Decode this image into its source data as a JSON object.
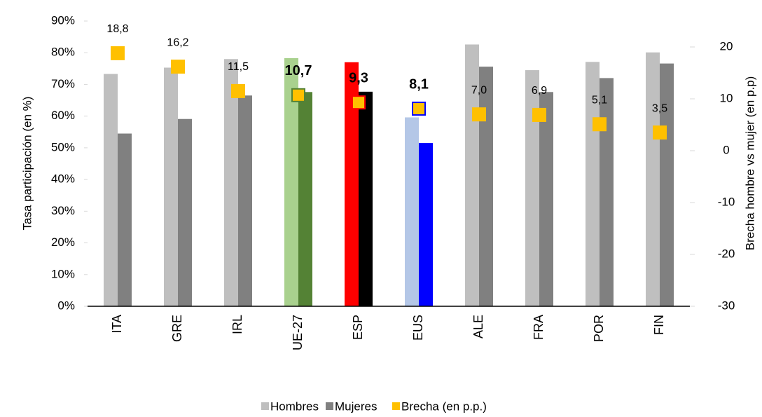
{
  "chart_data": {
    "type": "bar",
    "y_label": "Tasa participación (en %)",
    "y2_label": "Brecha hombre vs mujer (en p.p)",
    "y2_color": "#ed7d31",
    "categories": [
      "ITA",
      "GRE",
      "IRL",
      "UE-27",
      "ESP",
      "EUS",
      "ALE",
      "FRA",
      "POR",
      "FIN"
    ],
    "ylim": [
      0,
      90
    ],
    "yticks": [
      {
        "value": 0,
        "label": "0%"
      },
      {
        "value": 10,
        "label": "10%"
      },
      {
        "value": 20,
        "label": "20%"
      },
      {
        "value": 30,
        "label": "30%"
      },
      {
        "value": 40,
        "label": "40%"
      },
      {
        "value": 50,
        "label": "50%"
      },
      {
        "value": 60,
        "label": "60%"
      },
      {
        "value": 70,
        "label": "70%"
      },
      {
        "value": 80,
        "label": "80%"
      },
      {
        "value": 90,
        "label": "90%"
      }
    ],
    "y2lim": [
      -30,
      25
    ],
    "y2ticks": [
      -30,
      -20,
      -10,
      0,
      10,
      20
    ],
    "legend": "bottom",
    "series": [
      {
        "name": "Hombres",
        "color": "#bfbfbf",
        "type": "bar",
        "colors": [
          "#bfbfbf",
          "#bfbfbf",
          "#bfbfbf",
          "#a9d18e",
          "#ff0000",
          "#b4c7e7",
          "#bfbfbf",
          "#bfbfbf",
          "#bfbfbf",
          "#bfbfbf"
        ],
        "values": [
          73.3,
          75.3,
          78.0,
          78.3,
          77.0,
          59.6,
          82.6,
          74.5,
          77.1,
          80.1
        ]
      },
      {
        "name": "Mujeres",
        "color": "#808080",
        "type": "bar",
        "colors": [
          "#808080",
          "#808080",
          "#808080",
          "#548235",
          "#000000",
          "#0000ff",
          "#808080",
          "#808080",
          "#808080",
          "#808080"
        ],
        "values": [
          54.5,
          59.1,
          66.5,
          67.6,
          67.7,
          51.5,
          75.6,
          67.6,
          72.0,
          76.6
        ]
      },
      {
        "name": "Brecha (en p.p.)",
        "color": "#ffc000",
        "type": "scatter",
        "axis": "y2",
        "edge_colors": [
          "#ffc000",
          "#ffc000",
          "#ffc000",
          "#548235",
          "#ff0000",
          "#0000ff",
          "#ffc000",
          "#ffc000",
          "#ffc000",
          "#ffc000"
        ],
        "label_colors": [
          "#000000",
          "#000000",
          "#000000",
          "#000000",
          "#000000",
          "#0000ff",
          "#000000",
          "#000000",
          "#000000",
          "#000000"
        ],
        "label_weights": [
          "normal",
          "normal",
          "normal",
          "bold",
          "bold",
          "bold",
          "normal",
          "normal",
          "normal",
          "normal"
        ],
        "values": [
          18.8,
          16.2,
          11.5,
          10.7,
          9.3,
          8.1,
          7.0,
          6.9,
          5.1,
          3.5
        ],
        "value_labels": [
          "18,8",
          "16,2",
          "11,5",
          "10,7",
          "9,3",
          "8,1",
          "7,0",
          "6,9",
          "5,1",
          "3,5"
        ]
      }
    ]
  }
}
